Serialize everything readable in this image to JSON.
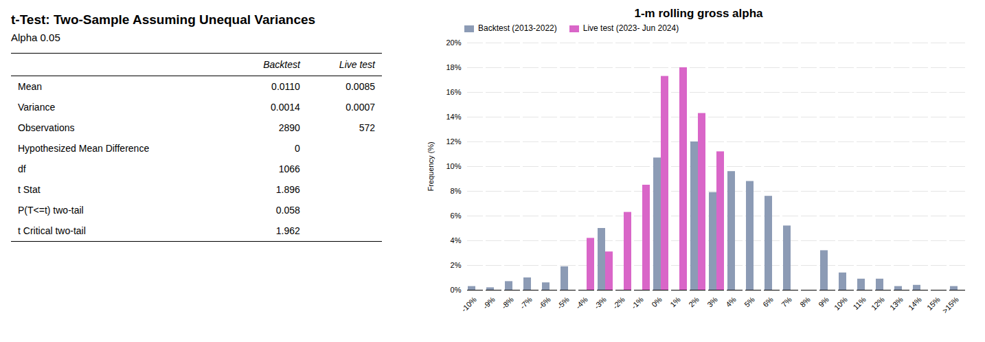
{
  "chart_data": [
    {
      "type": "table",
      "title": "t-Test: Two-Sample Assuming Unequal Variances",
      "subtitle": "Alpha 0.05",
      "columns": [
        "Backtest",
        "Live test"
      ],
      "rows": [
        [
          "Mean",
          "0.0110",
          "0.0085"
        ],
        [
          "Variance",
          "0.0014",
          "0.0007"
        ],
        [
          "Observations",
          "2890",
          "572"
        ],
        [
          "Hypothesized Mean Difference",
          "0",
          null
        ],
        [
          "df",
          "1066",
          null
        ],
        [
          "t Stat",
          "1.896",
          null
        ],
        [
          "P(T<=t) two-tail",
          "0.058",
          null
        ],
        [
          "t Critical two-tail",
          "1.962",
          null
        ]
      ]
    },
    {
      "type": "bar",
      "title": "1-m rolling gross alpha",
      "ylabel": "Frequency (%)",
      "categories": [
        "-10%",
        "-9%",
        "-8%",
        "-7%",
        "-6%",
        "-5%",
        "-4%",
        "-3%",
        "-2%",
        "-1%",
        "0%",
        "1%",
        "2%",
        "3%",
        "4%",
        "5%",
        "6%",
        "7%",
        "8%",
        "9%",
        "10%",
        "11%",
        "12%",
        "13%",
        "14%",
        "15%",
        ">15%"
      ],
      "series": [
        {
          "name": "Backtest (2013-2022)",
          "color": "#8C9BB5",
          "values": [
            0.3,
            0.2,
            0.7,
            1.0,
            0.6,
            1.9,
            0.0,
            5.0,
            0.0,
            0.0,
            10.7,
            0.0,
            12.0,
            7.9,
            9.6,
            8.8,
            7.6,
            5.2,
            0.0,
            3.2,
            1.4,
            0.9,
            0.9,
            0.3,
            0.4,
            0.0,
            0.3
          ]
        },
        {
          "name": "Live test (2023- Jun 2024)",
          "color": "#D966C8",
          "values": [
            0.0,
            0.0,
            0.0,
            0.0,
            0.0,
            0.0,
            4.2,
            3.1,
            6.3,
            8.5,
            17.3,
            18.0,
            14.3,
            11.2,
            0.0,
            0.0,
            0.0,
            0.0,
            0.0,
            0.0,
            0.0,
            0.0,
            0.0,
            0.0,
            0.0,
            0.0,
            0.0
          ]
        }
      ],
      "ylim": [
        0,
        20
      ],
      "yticks": [
        {
          "value": 0,
          "label": "0%"
        },
        {
          "value": 2,
          "label": "2%"
        },
        {
          "value": 4,
          "label": "4%"
        },
        {
          "value": 6,
          "label": "6%"
        },
        {
          "value": 8,
          "label": "8%"
        },
        {
          "value": 10,
          "label": "10%"
        },
        {
          "value": 12,
          "label": "12%"
        },
        {
          "value": 14,
          "label": "14%"
        },
        {
          "value": 16,
          "label": "16%"
        },
        {
          "value": 18,
          "label": "18%"
        },
        {
          "value": 20,
          "label": "20%"
        }
      ],
      "grid": true,
      "legend": "upper left"
    }
  ]
}
